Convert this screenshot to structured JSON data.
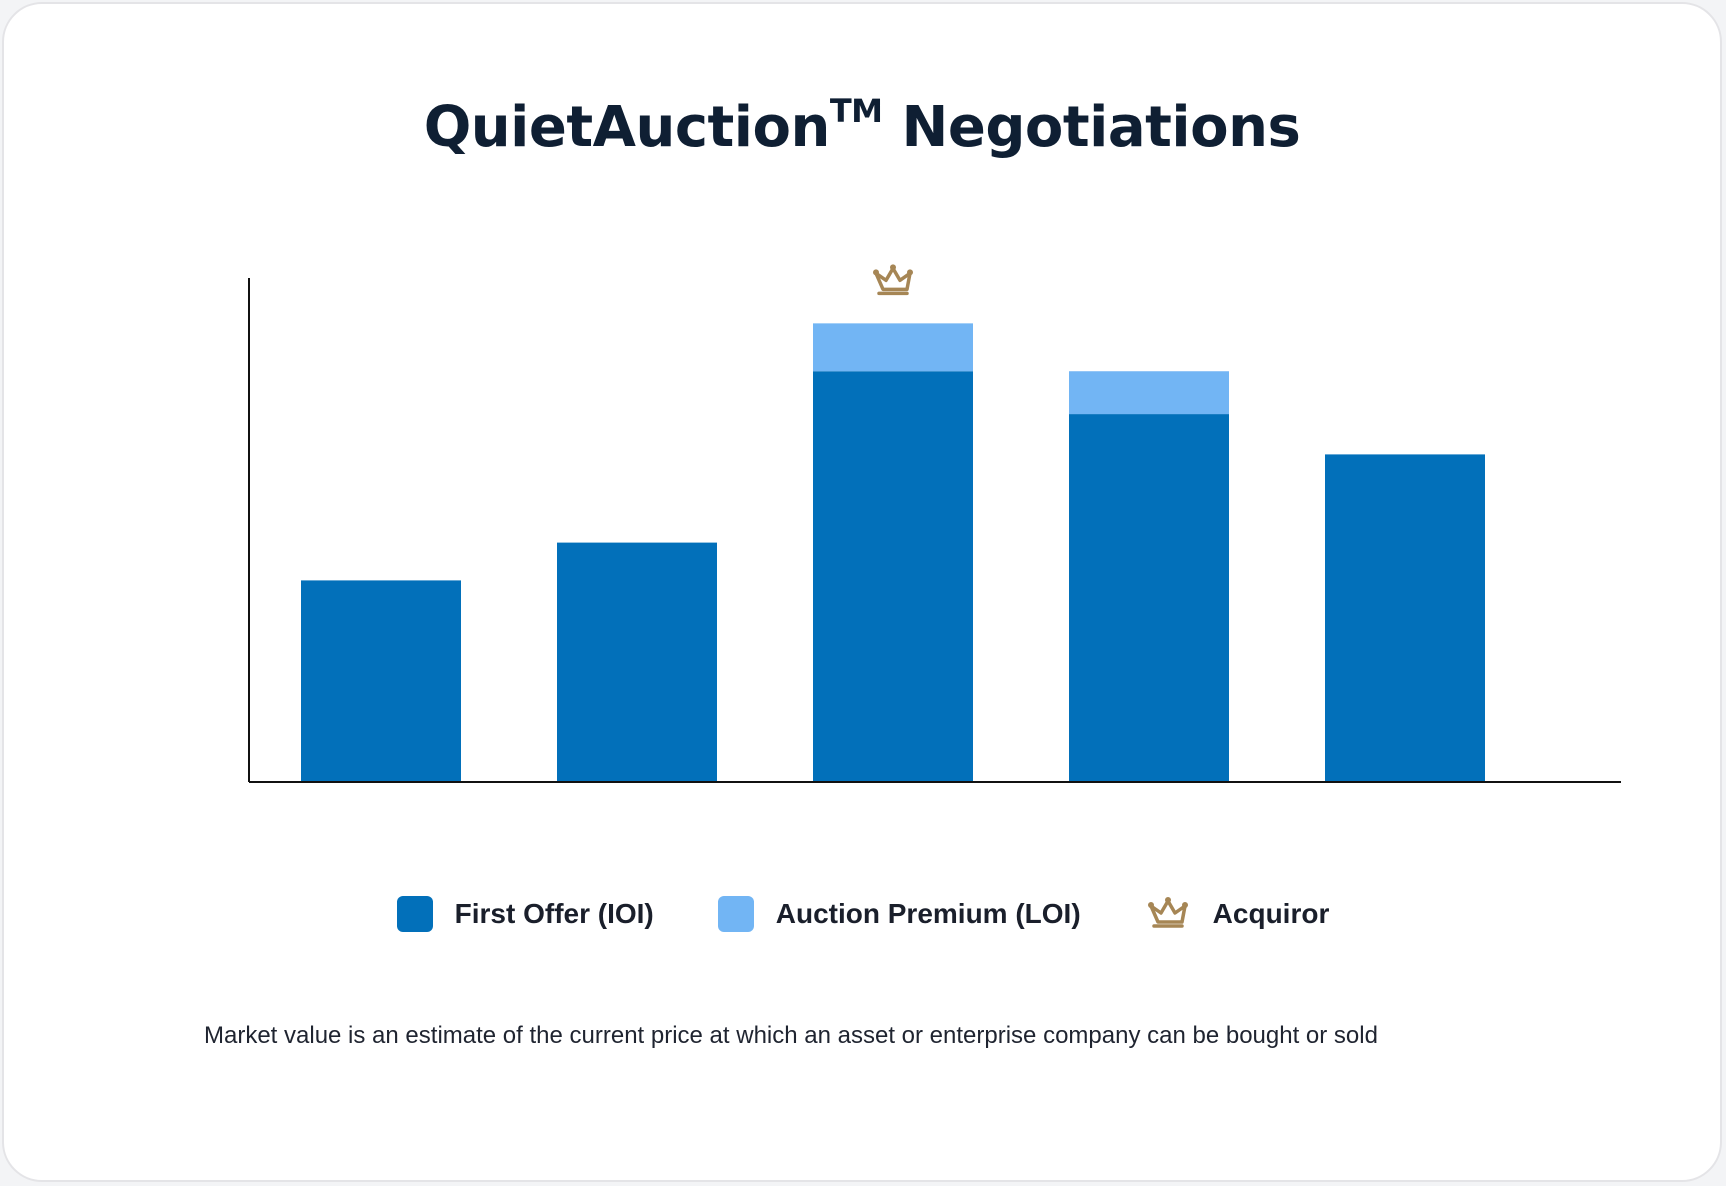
{
  "title": {
    "main": "QuietAuction",
    "tm": "TM",
    "rest": " Negotiations"
  },
  "colors": {
    "first_offer": "#0270ba",
    "auction_premium": "#72b5f4",
    "acquiror": "#a68655",
    "axis": "#111111"
  },
  "chart_data": {
    "type": "bar",
    "stacked": true,
    "categories": [
      "",
      "",
      "",
      "",
      ""
    ],
    "ylim": [
      0,
      100
    ],
    "series": [
      {
        "name": "First Offer (IOI)",
        "values": [
          40,
          47.5,
          81.5,
          73,
          65
        ]
      },
      {
        "name": "Auction Premium (LOI)",
        "values": [
          0,
          0,
          9.5,
          8.5,
          0
        ]
      }
    ],
    "acquiror_index": 2,
    "legend_position": "bottom",
    "grid": false
  },
  "legend": {
    "first_offer": "First Offer (IOI)",
    "auction_premium": "Auction Premium (LOI)",
    "acquiror": "Acquiror"
  },
  "footnote": "Market value is an estimate of the current price at which an asset or enterprise company can be bought or sold"
}
